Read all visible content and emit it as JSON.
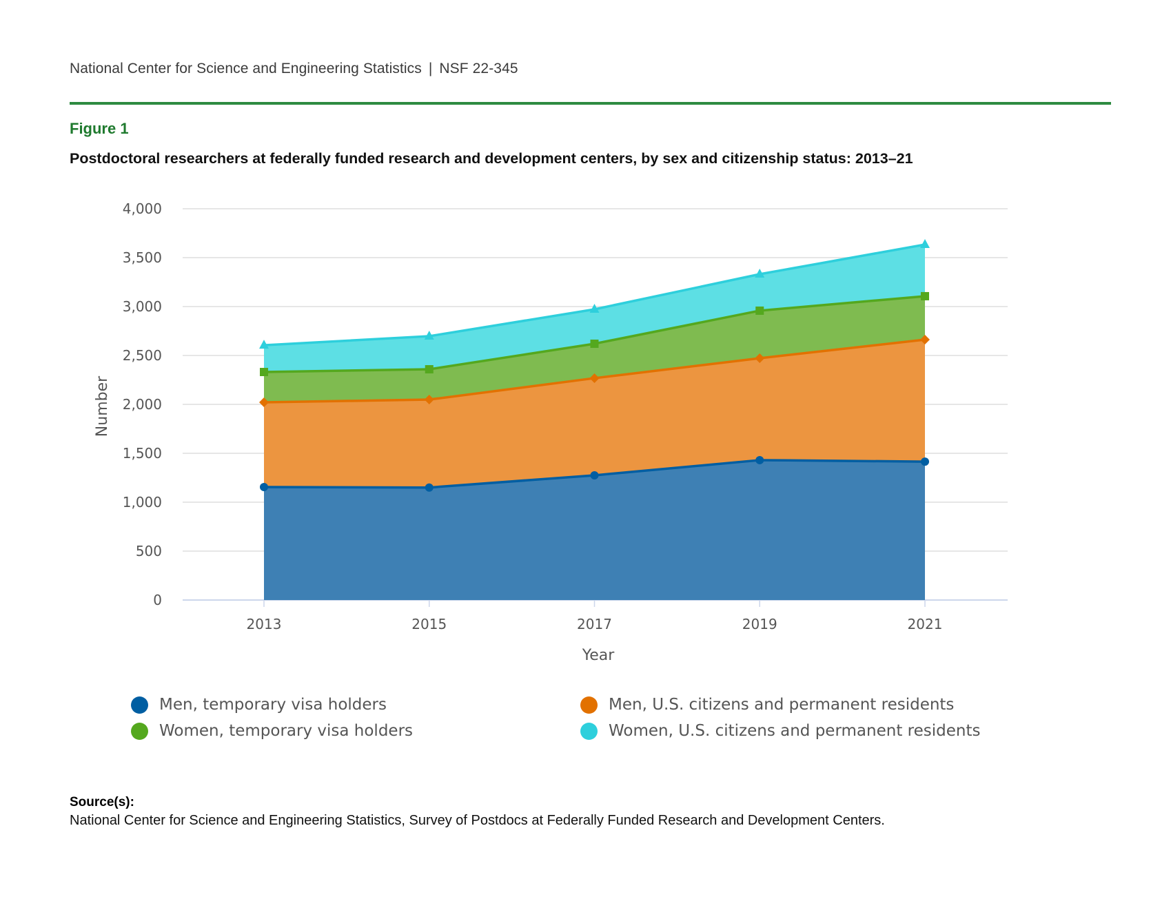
{
  "header": {
    "org": "National Center for Science and Engineering Statistics",
    "separator": "|",
    "report_id": "NSF 22-345"
  },
  "figure": {
    "label": "Figure 1",
    "title": "Postdoctoral researchers at federally funded research and development centers, by sex and citizenship status: 2013–21"
  },
  "chart_data": {
    "type": "area",
    "stacked": true,
    "title": "Postdoctoral researchers at federally funded research and development centers, by sex and citizenship status: 2013–21",
    "xlabel": "Year",
    "ylabel": "Number",
    "x": [
      "2013",
      "2015",
      "2017",
      "2019",
      "2021"
    ],
    "ylim": [
      0,
      4000
    ],
    "yticks": [
      0,
      500,
      1000,
      1500,
      2000,
      2500,
      3000,
      3500,
      4000
    ],
    "ytick_labels": [
      "0",
      "500",
      "1,000",
      "1,500",
      "2,000",
      "2,500",
      "3,000",
      "3,500",
      "4,000"
    ],
    "grid": true,
    "legend_position": "bottom",
    "series": [
      {
        "name": "Men, temporary visa holders",
        "marker": "circle",
        "line_color": "#005ea2",
        "fill_color": "#3e80b4",
        "values": [
          1155,
          1150,
          1275,
          1430,
          1415
        ]
      },
      {
        "name": "Men, U.S. citizens and permanent residents",
        "marker": "diamond",
        "line_color": "#e27100",
        "fill_color": "#ec9540",
        "values": [
          866,
          899,
          993,
          1042,
          1247
        ]
      },
      {
        "name": "Women, temporary visa holders",
        "marker": "square",
        "line_color": "#54a81e",
        "fill_color": "#7fbb50",
        "values": [
          310,
          310,
          352,
          486,
          444
        ]
      },
      {
        "name": "Women, U.S. citizens and permanent residents",
        "marker": "triangle",
        "line_color": "#2ecfdc",
        "fill_color": "#5ddfe4",
        "values": [
          274,
          338,
          352,
          373,
          528
        ]
      }
    ],
    "cumulative_totals": [
      2605,
      2697,
      2972,
      3331,
      3634
    ]
  },
  "legend": {
    "items": [
      {
        "label": "Men, temporary visa holders",
        "color": "#005ea2"
      },
      {
        "label": "Men, U.S. citizens and permanent residents",
        "color": "#e27100"
      },
      {
        "label": "Women, temporary visa holders",
        "color": "#54a81e"
      },
      {
        "label": "Women, U.S. citizens and permanent residents",
        "color": "#2ecfdc"
      }
    ]
  },
  "source": {
    "label": "Source(s):",
    "text": "National Center for Science and Engineering Statistics, Survey of Postdocs at Federally Funded Research and Development Centers."
  }
}
